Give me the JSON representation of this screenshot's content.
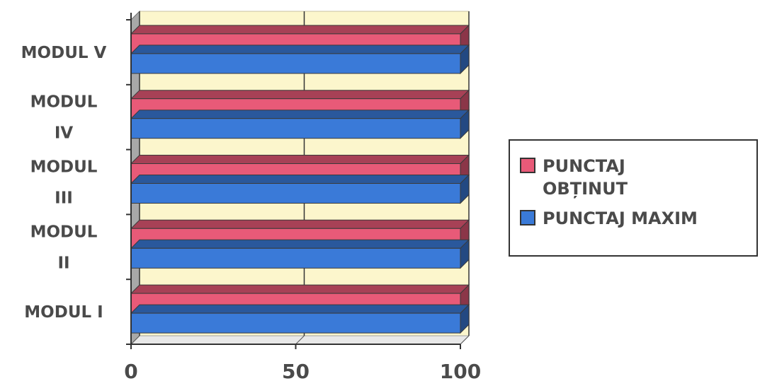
{
  "chart_data": {
    "type": "bar",
    "orientation": "horizontal",
    "style": "3d",
    "categories": [
      "MODUL I",
      "MODUL II",
      "MODUL III",
      "MODUL IV",
      "MODUL V"
    ],
    "series": [
      {
        "name": "PUNCTAJ OBȚINUT",
        "values": [
          100,
          100,
          100,
          100,
          100
        ],
        "color": "#e85a78"
      },
      {
        "name": "PUNCTAJ MAXIM",
        "values": [
          100,
          100,
          100,
          100,
          100
        ],
        "color": "#3a7ad8"
      }
    ],
    "xticks": [
      "0",
      "50",
      "100"
    ],
    "xlim": [
      0,
      100
    ],
    "title": "",
    "xlabel": "",
    "ylabel": "",
    "grid": true,
    "legend_position": "right",
    "plot_background": "#fcf6cc"
  }
}
